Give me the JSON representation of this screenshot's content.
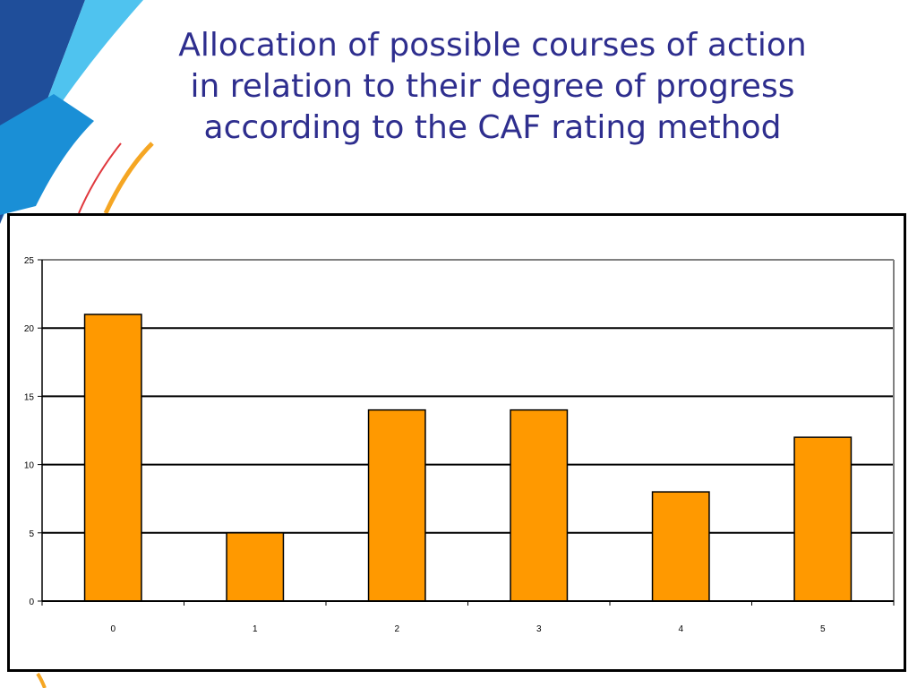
{
  "slide": {
    "title_lines": [
      "Allocation of possible courses of action",
      "in relation to their degree of progress",
      "according to the CAF rating method"
    ]
  },
  "colors": {
    "title": "#2e2e8e",
    "bar": "#ff9900",
    "bar_outline": "#000000",
    "decor_dark_blue": "#1f4e9a",
    "decor_light_blue": "#4fc3ef",
    "decor_mid_blue": "#1a8fd6",
    "decor_orange": "#f5a623",
    "decor_red": "#e0393e"
  },
  "chart_data": {
    "type": "bar",
    "title": "",
    "xlabel": "",
    "ylabel": "",
    "categories": [
      "0",
      "1",
      "2",
      "3",
      "4",
      "5"
    ],
    "values": [
      21,
      5,
      14,
      14,
      8,
      12
    ],
    "ylim": [
      0,
      25
    ],
    "yticks": [
      0,
      5,
      10,
      15,
      20,
      25
    ],
    "grid": true,
    "legend": "none"
  }
}
